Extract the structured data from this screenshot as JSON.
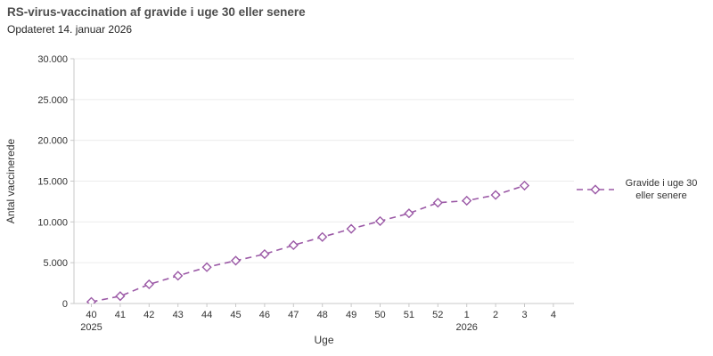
{
  "title": "RS-virus-vaccination af gravide i uge 30 eller senere",
  "subtitle": "Opdateret 14. januar 2026",
  "legend": {
    "line1": "Gravide i uge 30",
    "line2": "eller senere"
  },
  "chart_data": {
    "type": "line",
    "title": "RS-virus-vaccination af gravide i uge 30 eller senere",
    "xlabel": "Uge",
    "ylabel": "Antal vaccinerede",
    "x_categories": [
      "40",
      "41",
      "42",
      "43",
      "44",
      "45",
      "46",
      "47",
      "48",
      "49",
      "50",
      "51",
      "52",
      "1",
      "2",
      "3",
      "4"
    ],
    "x_year_labels": [
      {
        "index": 0,
        "label": "2025"
      },
      {
        "index": 13,
        "label": "2026"
      }
    ],
    "series": [
      {
        "name": "Gravide i uge 30 eller senere",
        "categories": [
          "40",
          "41",
          "42",
          "43",
          "44",
          "45",
          "46",
          "47",
          "48",
          "49",
          "50",
          "51",
          "52",
          "1",
          "2",
          "3"
        ],
        "values": [
          200,
          900,
          2350,
          3400,
          4450,
          5250,
          6050,
          7150,
          8150,
          9150,
          10100,
          11050,
          12350,
          12600,
          13300,
          14450
        ]
      }
    ],
    "ylim": [
      0,
      30000
    ],
    "ytick_step": 5000,
    "ytick_labels": [
      "0",
      "5.000",
      "10.000",
      "15.000",
      "20.000",
      "25.000",
      "30.000"
    ],
    "grid": "horizontal",
    "line_style": "dashed",
    "marker": "diamond-hollow",
    "legend_position": "right",
    "colors": {
      "line": "#9b59a6",
      "marker_fill": "#ffffff",
      "grid": "#ececec",
      "axis": "#c8c8c8",
      "tick_text": "#333333",
      "title_text": "#4d4d4d"
    }
  }
}
